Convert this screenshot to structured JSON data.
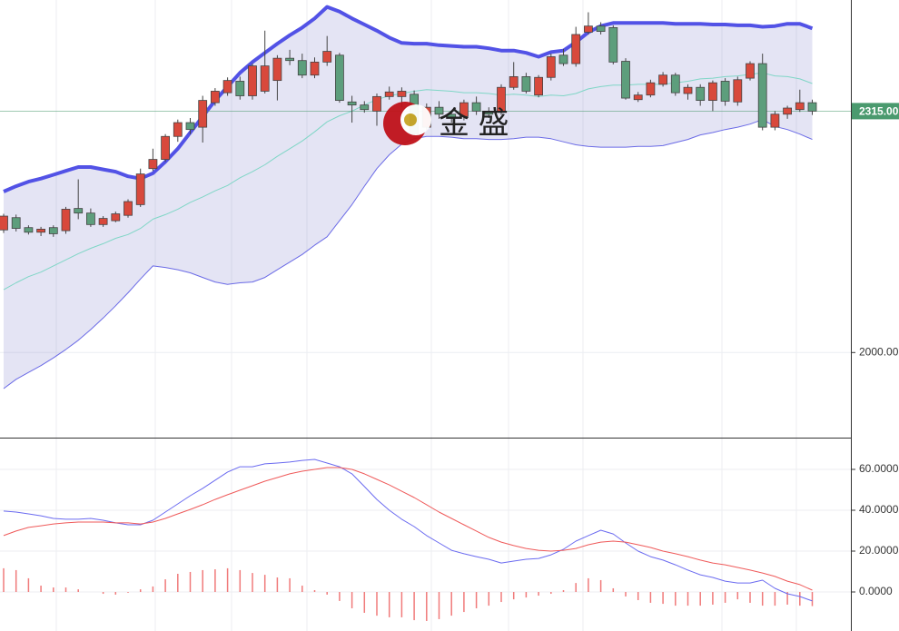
{
  "chart_data": [
    {
      "type": "candlestick",
      "ylim": [
        1889,
        2460
      ],
      "yticks": [
        {
          "value": 2000,
          "label": "2000.00"
        }
      ],
      "grid": true,
      "last_price": {
        "value": 2315,
        "label": "2315.00",
        "color": "#4a9a6e"
      },
      "up_color": "#d8493c",
      "down_color": "#5d9e7c",
      "band_fill": "rgba(120,120,200,0.2)",
      "open": [
        2160,
        2176,
        2163,
        2157,
        2163,
        2159,
        2188,
        2182,
        2167,
        2172,
        2179,
        2193,
        2240,
        2252,
        2282,
        2300,
        2294,
        2326,
        2339,
        2354,
        2335,
        2341,
        2355,
        2384,
        2381,
        2362,
        2379,
        2388,
        2327,
        2323,
        2315,
        2334,
        2334,
        2337,
        2294,
        2320,
        2311,
        2308,
        2326,
        2315,
        2315,
        2346,
        2360,
        2336,
        2359,
        2388,
        2377,
        2418,
        2426,
        2424,
        2380,
        2330,
        2336,
        2350,
        2362,
        2338,
        2346,
        2329,
        2354,
        2327,
        2358,
        2377,
        2294,
        2311,
        2317,
        2326
      ],
      "high": [
        2181,
        2180,
        2166,
        2164,
        2166,
        2190,
        2226,
        2188,
        2178,
        2184,
        2200,
        2240,
        2266,
        2285,
        2304,
        2306,
        2335,
        2345,
        2359,
        2360,
        2377,
        2420,
        2388,
        2395,
        2390,
        2385,
        2413,
        2391,
        2335,
        2328,
        2338,
        2347,
        2346,
        2342,
        2325,
        2328,
        2315,
        2330,
        2334,
        2320,
        2350,
        2379,
        2365,
        2362,
        2390,
        2396,
        2425,
        2444,
        2431,
        2427,
        2384,
        2340,
        2356,
        2366,
        2365,
        2350,
        2350,
        2355,
        2358,
        2360,
        2380,
        2390,
        2315,
        2322,
        2343,
        2330
      ],
      "low": [
        2156,
        2158,
        2154,
        2152,
        2151,
        2155,
        2174,
        2164,
        2164,
        2170,
        2176,
        2190,
        2237,
        2249,
        2275,
        2285,
        2274,
        2322,
        2335,
        2330,
        2330,
        2338,
        2329,
        2375,
        2358,
        2358,
        2374,
        2326,
        2300,
        2313,
        2296,
        2330,
        2320,
        2283,
        2290,
        2305,
        2300,
        2303,
        2310,
        2306,
        2310,
        2343,
        2338,
        2333,
        2355,
        2374,
        2373,
        2415,
        2415,
        2376,
        2330,
        2327,
        2333,
        2347,
        2335,
        2330,
        2322,
        2315,
        2322,
        2322,
        2355,
        2290,
        2290,
        2305,
        2314,
        2310
      ],
      "close": [
        2178,
        2162,
        2157,
        2161,
        2155,
        2187,
        2182,
        2167,
        2175,
        2181,
        2197,
        2233,
        2252,
        2282,
        2300,
        2291,
        2329,
        2341,
        2355,
        2335,
        2374,
        2374,
        2384,
        2381,
        2362,
        2379,
        2393,
        2329,
        2323,
        2317,
        2334,
        2340,
        2341,
        2285,
        2320,
        2311,
        2306,
        2326,
        2315,
        2311,
        2346,
        2360,
        2341,
        2359,
        2386,
        2377,
        2415,
        2426,
        2419,
        2379,
        2332,
        2336,
        2352,
        2362,
        2339,
        2346,
        2329,
        2352,
        2328,
        2356,
        2377,
        2294,
        2311,
        2319,
        2326,
        2315
      ],
      "overlays": [
        {
          "color": "#5252e6",
          "width": 4,
          "values": [
            2210,
            2217,
            2223,
            2227,
            2232,
            2237,
            2242,
            2242,
            2239,
            2236,
            2230,
            2227,
            2234,
            2249,
            2266,
            2287,
            2308,
            2329,
            2347,
            2365,
            2379,
            2391,
            2403,
            2414,
            2424,
            2436,
            2451,
            2445,
            2436,
            2428,
            2420,
            2411,
            2404,
            2403,
            2403,
            2401,
            2400,
            2399,
            2399,
            2397,
            2394,
            2394,
            2391,
            2386,
            2392,
            2394,
            2405,
            2418,
            2426,
            2430,
            2430,
            2430,
            2430,
            2430,
            2429,
            2429,
            2429,
            2428,
            2428,
            2427,
            2427,
            2425,
            2426,
            2429,
            2429,
            2423
          ]
        },
        {
          "color": "#7fd6c6",
          "width": 1,
          "values": [
            2082,
            2091,
            2099,
            2105,
            2113,
            2121,
            2129,
            2136,
            2142,
            2149,
            2154,
            2162,
            2174,
            2180,
            2187,
            2196,
            2203,
            2211,
            2218,
            2228,
            2236,
            2245,
            2256,
            2266,
            2276,
            2288,
            2301,
            2309,
            2315,
            2323,
            2330,
            2335,
            2338,
            2341,
            2343,
            2342,
            2341,
            2339,
            2339,
            2338,
            2336,
            2337,
            2336,
            2334,
            2336,
            2335,
            2338,
            2344,
            2347,
            2349,
            2349,
            2350,
            2350,
            2350,
            2352,
            2354,
            2357,
            2358,
            2360,
            2361,
            2363,
            2365,
            2361,
            2360,
            2357,
            2351
          ]
        },
        {
          "color": "#6a6ae6",
          "width": 1,
          "values": [
            1953,
            1965,
            1974,
            1983,
            1993,
            2004,
            2016,
            2030,
            2045,
            2061,
            2078,
            2096,
            2113,
            2111,
            2108,
            2104,
            2098,
            2092,
            2089,
            2091,
            2092,
            2098,
            2108,
            2118,
            2128,
            2140,
            2151,
            2172,
            2193,
            2217,
            2240,
            2258,
            2272,
            2279,
            2282,
            2282,
            2281,
            2279,
            2279,
            2278,
            2278,
            2279,
            2281,
            2281,
            2279,
            2275,
            2271,
            2269,
            2268,
            2268,
            2268,
            2269,
            2269,
            2270,
            2274,
            2278,
            2284,
            2287,
            2291,
            2294,
            2298,
            2304,
            2295,
            2291,
            2285,
            2278
          ]
        }
      ],
      "watermark": "金 盛"
    },
    {
      "type": "macd",
      "ylim": [
        -19.1,
        75.1
      ],
      "yticks": [
        {
          "value": 60,
          "label": "60.0000"
        },
        {
          "value": 40,
          "label": "40.0000"
        },
        {
          "value": 20,
          "label": "20.0000"
        },
        {
          "value": 0,
          "label": "0.0000"
        }
      ],
      "grid": true,
      "lines": [
        {
          "color": "#6b6bf0",
          "values": [
            39.6,
            39.1,
            38.2,
            37.3,
            36.0,
            35.6,
            35.6,
            36.0,
            35.1,
            33.8,
            32.9,
            32.9,
            35.1,
            39.1,
            43.1,
            47.1,
            50.7,
            54.7,
            58.7,
            61.3,
            61.3,
            62.7,
            63.1,
            63.6,
            64.4,
            64.9,
            63.1,
            61.3,
            57.8,
            51.6,
            45.3,
            40.0,
            35.6,
            32.0,
            27.6,
            24.0,
            20.4,
            18.7,
            17.3,
            16.0,
            14.2,
            15.1,
            16.0,
            16.4,
            18.2,
            20.9,
            24.9,
            27.6,
            30.2,
            28.4,
            24.0,
            20.0,
            17.3,
            15.6,
            13.3,
            10.7,
            8.4,
            7.1,
            5.3,
            4.4,
            4.4,
            5.8,
            1.8,
            -0.9,
            -2.2,
            -4.4
          ]
        },
        {
          "color": "#ef5a5a",
          "values": [
            27.6,
            29.8,
            31.6,
            32.4,
            33.3,
            33.8,
            34.2,
            34.2,
            34.2,
            33.8,
            33.8,
            33.3,
            34.2,
            36.0,
            38.2,
            40.4,
            42.7,
            45.3,
            47.6,
            49.8,
            52.0,
            54.2,
            56.0,
            57.8,
            59.1,
            60.0,
            60.9,
            60.9,
            60.0,
            57.8,
            55.1,
            52.4,
            49.3,
            46.2,
            42.7,
            39.1,
            36.0,
            32.9,
            29.8,
            26.7,
            24.4,
            22.7,
            21.3,
            20.4,
            20.0,
            20.4,
            21.3,
            23.1,
            24.4,
            24.9,
            24.4,
            23.1,
            21.8,
            20.0,
            18.7,
            17.3,
            15.6,
            14.2,
            13.3,
            12.0,
            10.7,
            9.3,
            7.6,
            5.3,
            3.6,
            0.9
          ]
        }
      ],
      "histogram": {
        "color": "#f07a7a",
        "values": [
          11.6,
          10.7,
          6.7,
          3.1,
          2.2,
          2.2,
          1.3,
          0,
          -0.9,
          -1.3,
          -0.4,
          1.3,
          2.7,
          6.2,
          8.9,
          9.8,
          10.7,
          11.1,
          11.6,
          10.7,
          9.3,
          8.4,
          7.1,
          6.7,
          3.1,
          0.9,
          -1.3,
          -4.4,
          -8.0,
          -10.2,
          -11.6,
          -12.4,
          -12.4,
          -13.8,
          -14.2,
          -13.3,
          -11.6,
          -9.8,
          -8.0,
          -6.7,
          -4.9,
          -3.6,
          -2.7,
          -1.8,
          -0.9,
          0.9,
          4.4,
          6.7,
          5.8,
          1.8,
          -2.2,
          -4.0,
          -5.3,
          -5.8,
          -6.7,
          -6.7,
          -6.7,
          -6.2,
          -5.3,
          -3.6,
          -5.3,
          -6.7,
          -6.7,
          -6.2,
          -6.7,
          -6.9
        ]
      }
    }
  ]
}
